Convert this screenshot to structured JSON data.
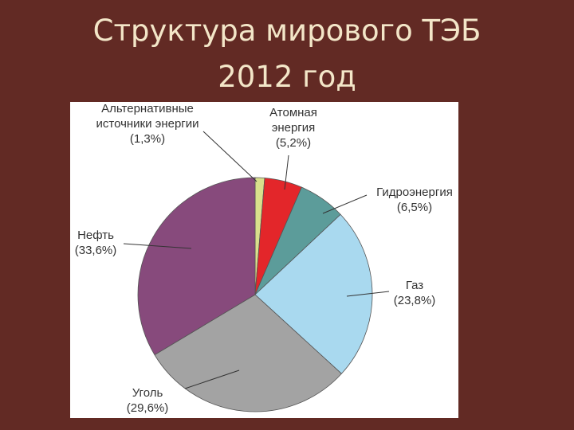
{
  "chart_data": {
    "type": "pie",
    "title": "Структура  мирового ТЭБ\n2012  год",
    "categories": [
      "Альтернативные\nисточники энергии",
      "Атомная\nэнергия",
      "Гидроэнергия",
      "Газ",
      "Уголь",
      "Нефть"
    ],
    "values": [
      1.3,
      5.2,
      6.5,
      23.8,
      29.6,
      33.6
    ],
    "value_labels": [
      "(1,3%)",
      "(5,2%)",
      "(6,5%)",
      "(23,8%)",
      "(29,6%)",
      "(33,6%)"
    ],
    "colors": [
      "#d9df8c",
      "#e3262a",
      "#5c9c9a",
      "#a9d9ef",
      "#a3a3a3",
      "#874a7c"
    ]
  }
}
